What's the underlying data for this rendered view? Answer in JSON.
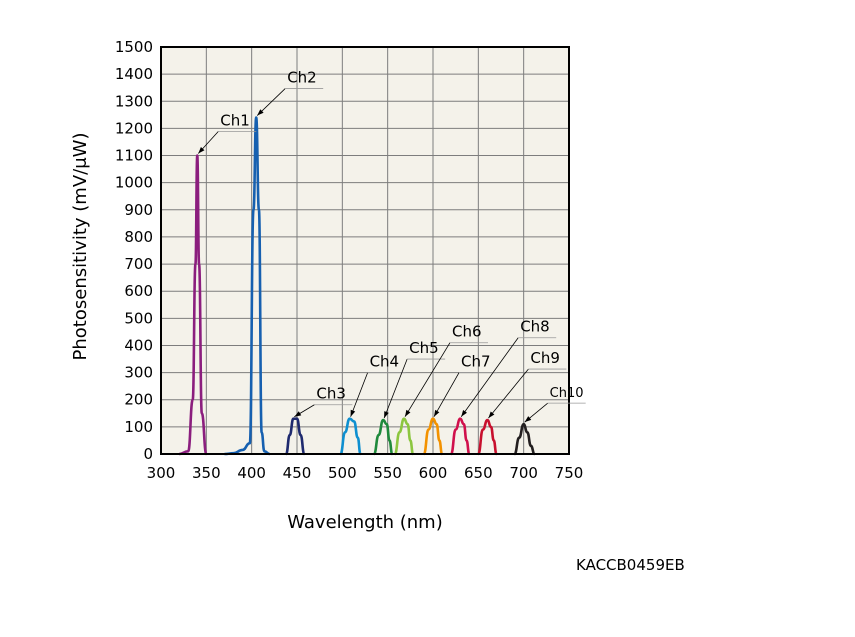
{
  "chart_data": {
    "type": "line",
    "title": "",
    "xlabel": "Wavelength (nm)",
    "ylabel": "Photosensitivity (mV/μW)",
    "xlim": [
      300,
      750
    ],
    "ylim": [
      0,
      1500
    ],
    "x_ticks": [
      300,
      350,
      400,
      450,
      500,
      550,
      600,
      650,
      700,
      750
    ],
    "y_ticks": [
      0,
      100,
      200,
      300,
      400,
      500,
      600,
      700,
      800,
      900,
      1000,
      1100,
      1200,
      1300,
      1400,
      1500
    ],
    "grid": true,
    "background": "#f4f2ea",
    "series": [
      {
        "name": "Ch1",
        "color": "#8b1e7e",
        "points": [
          [
            320,
            0
          ],
          [
            330,
            10
          ],
          [
            335,
            200
          ],
          [
            338,
            700
          ],
          [
            340,
            1100
          ],
          [
            342,
            700
          ],
          [
            345,
            150
          ],
          [
            350,
            0
          ]
        ],
        "label_offset": [
          25,
          30
        ]
      },
      {
        "name": "Ch2",
        "color": "#1660b0",
        "points": [
          [
            370,
            0
          ],
          [
            380,
            3
          ],
          [
            390,
            15
          ],
          [
            398,
            40
          ],
          [
            402,
            900
          ],
          [
            405,
            1240
          ],
          [
            408,
            900
          ],
          [
            411,
            80
          ],
          [
            414,
            10
          ],
          [
            420,
            0
          ]
        ],
        "label_offset": [
          33,
          35
        ]
      },
      {
        "name": "Ch3",
        "color": "#1e2a6e",
        "points": [
          [
            438,
            0
          ],
          [
            442,
            70
          ],
          [
            446,
            130
          ],
          [
            450,
            130
          ],
          [
            454,
            70
          ],
          [
            458,
            0
          ]
        ],
        "label_offset": [
          25,
          20
        ]
      },
      {
        "name": "Ch4",
        "color": "#0e8fd0",
        "points": [
          [
            498,
            0
          ],
          [
            503,
            80
          ],
          [
            508,
            130
          ],
          [
            513,
            120
          ],
          [
            517,
            60
          ],
          [
            520,
            0
          ]
        ],
        "label_offset": [
          22,
          52
        ]
      },
      {
        "name": "Ch5",
        "color": "#1f8a3c",
        "points": [
          [
            535,
            0
          ],
          [
            540,
            70
          ],
          [
            545,
            125
          ],
          [
            549,
            110
          ],
          [
            552,
            50
          ],
          [
            555,
            0
          ]
        ],
        "label_offset": [
          28,
          67
        ]
      },
      {
        "name": "Ch6",
        "color": "#8cc63f",
        "points": [
          [
            558,
            0
          ],
          [
            563,
            80
          ],
          [
            568,
            130
          ],
          [
            572,
            110
          ],
          [
            575,
            50
          ],
          [
            578,
            0
          ]
        ],
        "label_offset": [
          50,
          82
        ]
      },
      {
        "name": "Ch7",
        "color": "#f39200",
        "points": [
          [
            590,
            0
          ],
          [
            595,
            90
          ],
          [
            600,
            130
          ],
          [
            604,
            110
          ],
          [
            607,
            50
          ],
          [
            610,
            0
          ]
        ],
        "label_offset": [
          30,
          52
        ]
      },
      {
        "name": "Ch8",
        "color": "#d0104c",
        "points": [
          [
            620,
            0
          ],
          [
            625,
            90
          ],
          [
            630,
            130
          ],
          [
            634,
            110
          ],
          [
            637,
            50
          ],
          [
            640,
            0
          ]
        ],
        "label_offset": [
          62,
          87
        ]
      },
      {
        "name": "Ch9",
        "color": "#c8102e",
        "points": [
          [
            650,
            0
          ],
          [
            655,
            90
          ],
          [
            660,
            125
          ],
          [
            664,
            100
          ],
          [
            667,
            50
          ],
          [
            670,
            0
          ]
        ],
        "label_offset": [
          45,
          57
        ]
      },
      {
        "name": "Ch10",
        "color": "#231f20",
        "points": [
          [
            690,
            0
          ],
          [
            695,
            60
          ],
          [
            700,
            110
          ],
          [
            704,
            80
          ],
          [
            708,
            30
          ],
          [
            712,
            0
          ]
        ],
        "label_offset": [
          28,
          27
        ]
      }
    ]
  },
  "figure_code": "KACCB0459EB"
}
